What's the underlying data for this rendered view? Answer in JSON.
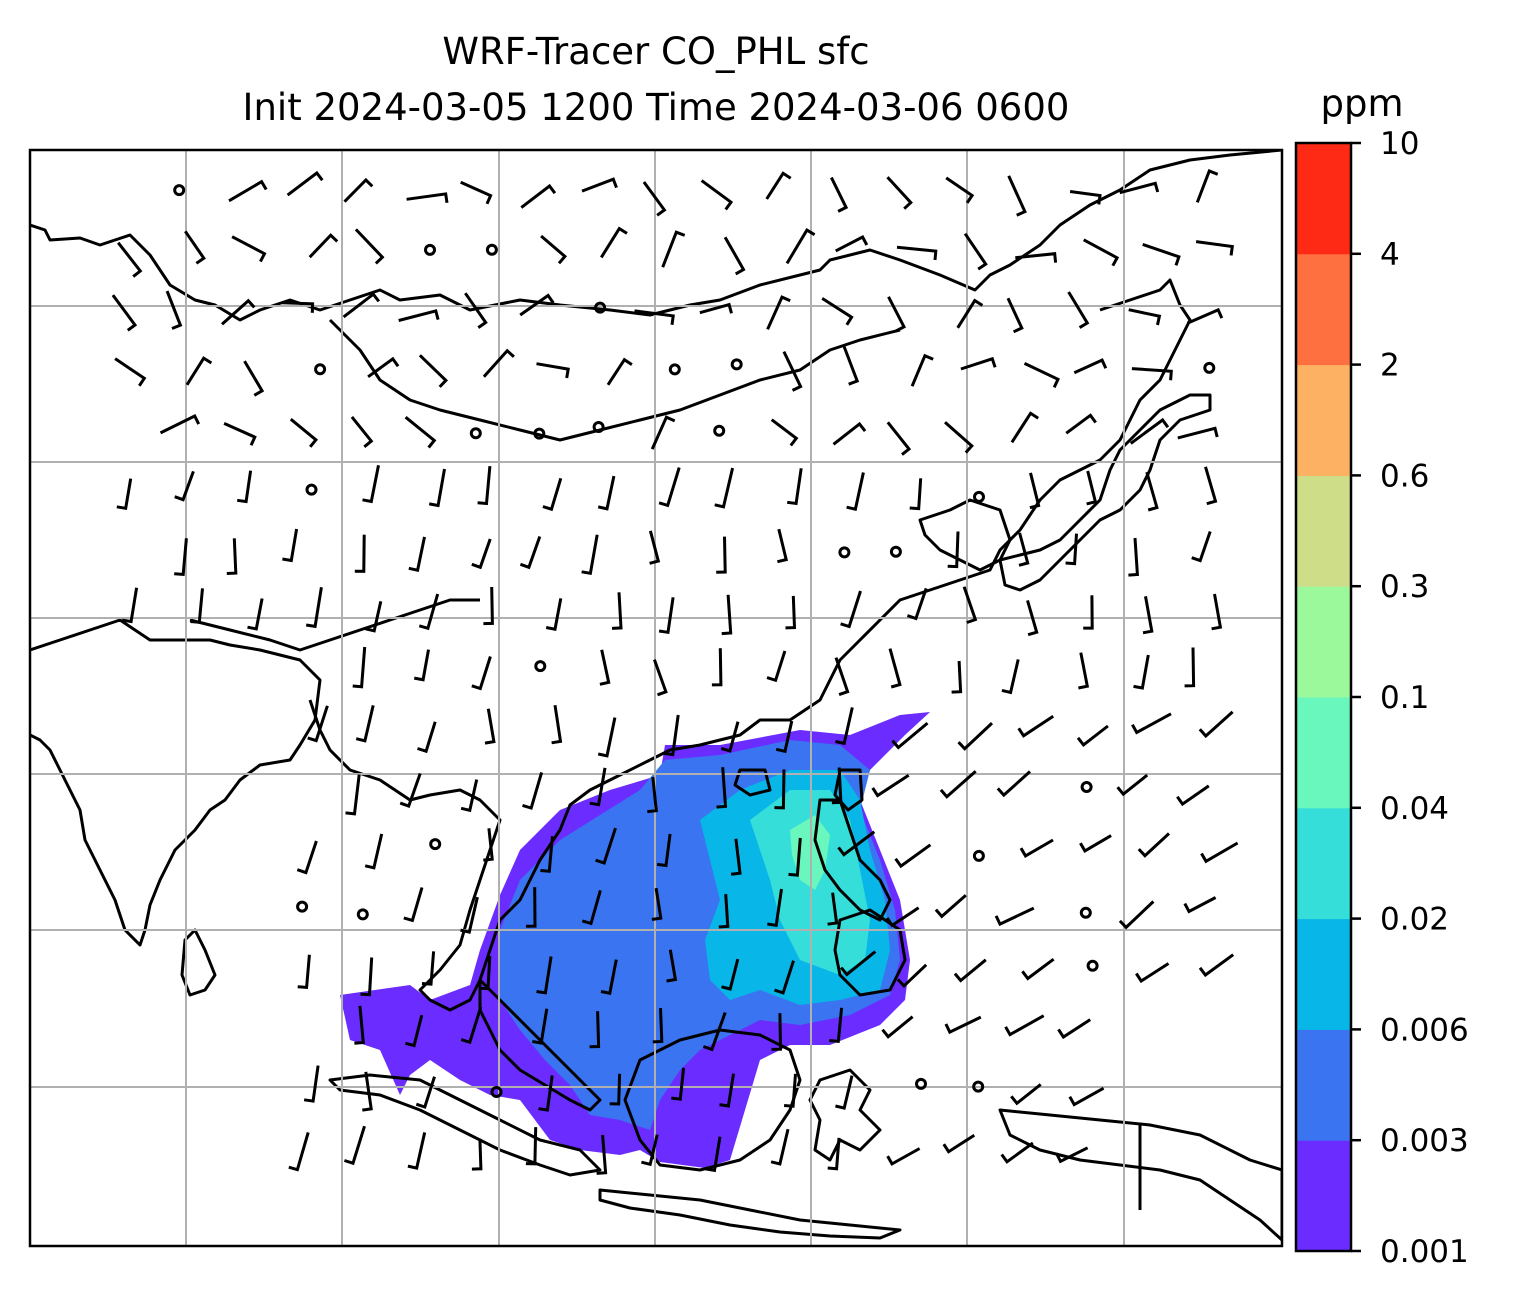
{
  "title": {
    "line1": "WRF-Tracer CO_PHL sfc",
    "line2": "Init 2024-03-05 1200 Time 2024-03-06 0600"
  },
  "colorbar": {
    "unit": "ppm",
    "levels": [
      "0.001",
      "0.003",
      "0.006",
      "0.02",
      "0.04",
      "0.1",
      "0.3",
      "0.6",
      "2",
      "4",
      "10"
    ],
    "colors": [
      "#6a2cff",
      "#3a74f0",
      "#08b6e8",
      "#35ded8",
      "#69f7bd",
      "#9cf99b",
      "#cede88",
      "#fdb163",
      "#ff7040",
      "#ff2a16"
    ]
  },
  "map": {
    "coastline_color": "#000000",
    "grid_color": "#b0b0b0",
    "tracer_plume_region": "Southeast Asia / South China Sea, highest near Philippines"
  }
}
